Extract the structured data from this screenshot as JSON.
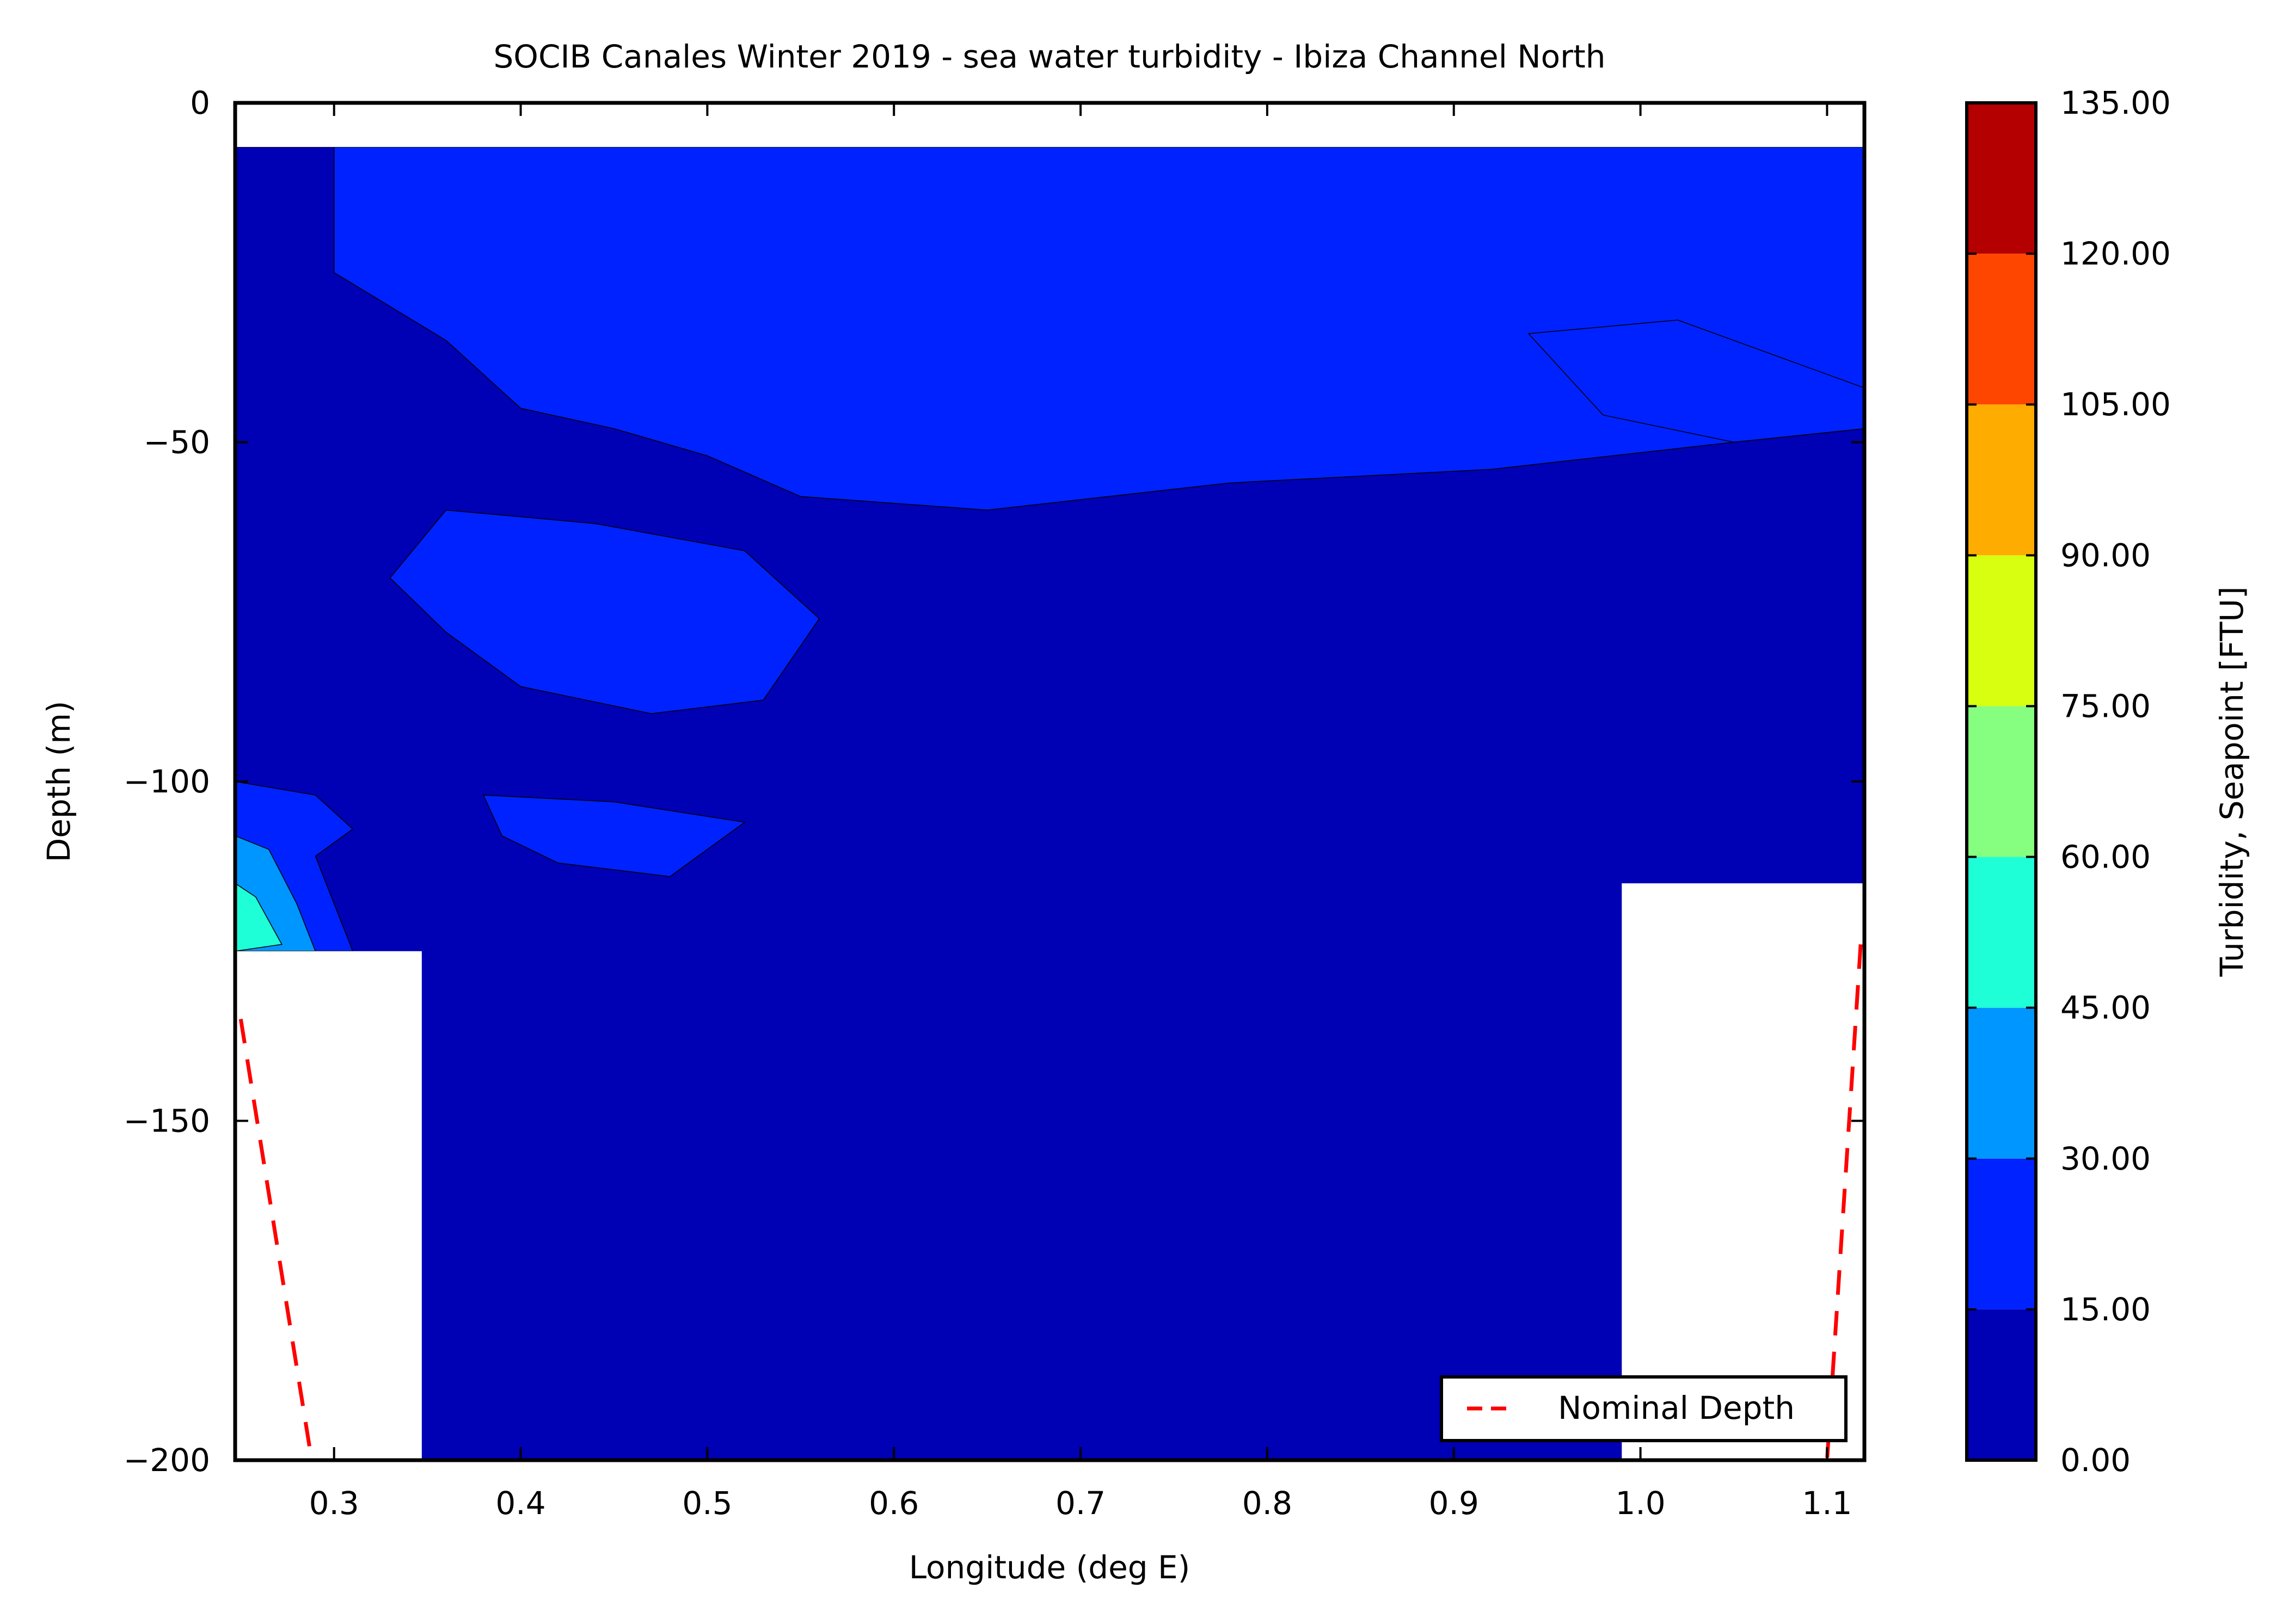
{
  "chart_data": {
    "type": "heatmap",
    "title": "SOCIB Canales Winter 2019 - sea water turbidity  -  Ibiza Channel North",
    "xlabel": "Longitude (deg E)",
    "ylabel": "Depth (m)",
    "xlim": [
      0.247,
      1.12
    ],
    "ylim": [
      -200,
      0
    ],
    "xticks": [
      0.3,
      0.4,
      0.5,
      0.6,
      0.7,
      0.8,
      0.9,
      1.0,
      1.1
    ],
    "xtick_labels": [
      "0.3",
      "0.4",
      "0.5",
      "0.6",
      "0.7",
      "0.8",
      "0.9",
      "1.0",
      "1.1"
    ],
    "yticks": [
      0,
      -50,
      -100,
      -150,
      -200
    ],
    "ytick_labels": [
      "0",
      "−50",
      "−100",
      "−150",
      "−200"
    ],
    "grid": false,
    "data_top_depth": -6.5,
    "colorbar": {
      "label": "Turbidity, Seapoint [FTU]",
      "levels": [
        0,
        15,
        30,
        45,
        60,
        75,
        90,
        105,
        120,
        135
      ],
      "level_labels": [
        "0.00",
        "15.00",
        "30.00",
        "45.00",
        "60.00",
        "75.00",
        "90.00",
        "105.00",
        "120.00",
        "135.00"
      ],
      "colors": [
        "#0000b4",
        "#0022ff",
        "#0096ff",
        "#1effd7",
        "#86ff80",
        "#d8ff10",
        "#ffac00",
        "#ff4600",
        "#b40000"
      ]
    },
    "contour_regions": [
      {
        "level": "0-15",
        "color": "#0000b4",
        "description_bounds": {
          "x": [
            0.247,
            1.12
          ],
          "y": [
            -200,
            -6.5
          ]
        }
      },
      {
        "level": "15-30",
        "color": "#0022ff",
        "polygon": [
          [
            0.247,
            -6.5
          ],
          [
            0.3,
            -6.5
          ],
          [
            0.3,
            -25
          ],
          [
            0.36,
            -35
          ],
          [
            0.4,
            -45
          ],
          [
            0.45,
            -48
          ],
          [
            0.5,
            -52
          ],
          [
            0.55,
            -58
          ],
          [
            0.65,
            -60
          ],
          [
            0.78,
            -56
          ],
          [
            0.92,
            -54
          ],
          [
            1.05,
            -50
          ],
          [
            1.12,
            -48
          ],
          [
            1.12,
            -6.5
          ]
        ]
      },
      {
        "level": "15-30",
        "color": "#0022ff",
        "polygon": [
          [
            0.36,
            -60
          ],
          [
            0.44,
            -62
          ],
          [
            0.52,
            -66
          ],
          [
            0.56,
            -76
          ],
          [
            0.53,
            -88
          ],
          [
            0.47,
            -90
          ],
          [
            0.4,
            -86
          ],
          [
            0.36,
            -78
          ],
          [
            0.33,
            -70
          ]
        ]
      },
      {
        "level": "15-30",
        "color": "#0022ff",
        "polygon": [
          [
            0.38,
            -102
          ],
          [
            0.45,
            -103
          ],
          [
            0.52,
            -106
          ],
          [
            0.48,
            -114
          ],
          [
            0.42,
            -112
          ],
          [
            0.39,
            -108
          ]
        ]
      },
      {
        "level": "15-30",
        "color": "#0022ff",
        "polygon": [
          [
            0.247,
            -100
          ],
          [
            0.29,
            -102
          ],
          [
            0.31,
            -107
          ],
          [
            0.29,
            -111
          ],
          [
            0.3,
            -118
          ],
          [
            0.31,
            -125
          ],
          [
            0.247,
            -125
          ]
        ]
      },
      {
        "level": "15-30",
        "color": "#0022ff",
        "polygon": [
          [
            0.94,
            -34
          ],
          [
            1.02,
            -32
          ],
          [
            1.08,
            -38
          ],
          [
            1.12,
            -42
          ],
          [
            1.12,
            -48
          ],
          [
            1.05,
            -50
          ],
          [
            0.98,
            -46
          ]
        ]
      },
      {
        "level": "30-45",
        "color": "#0096ff",
        "polygon": [
          [
            0.247,
            -108
          ],
          [
            0.265,
            -110
          ],
          [
            0.28,
            -118
          ],
          [
            0.29,
            -125
          ],
          [
            0.247,
            -125
          ]
        ]
      },
      {
        "level": "45-60",
        "color": "#1effd7",
        "polygon": [
          [
            0.247,
            -115
          ],
          [
            0.258,
            -117
          ],
          [
            0.272,
            -124
          ],
          [
            0.247,
            -125
          ]
        ]
      }
    ],
    "no_data_masks": [
      {
        "x": [
          0.247,
          0.347
        ],
        "y": [
          -200,
          -125
        ]
      },
      {
        "x": [
          0.99,
          1.12
        ],
        "y": [
          -200,
          -115
        ]
      }
    ],
    "series": [
      {
        "name": "Nominal Depth",
        "color": "#ff0000",
        "style": "dashed",
        "segments": [
          [
            [
              0.25,
              -135
            ],
            [
              0.288,
              -200
            ]
          ],
          [
            [
              1.118,
              -124
            ],
            [
              1.1,
              -200
            ]
          ]
        ]
      }
    ],
    "legend": {
      "placement": "lower right",
      "entries": [
        "Nominal Depth"
      ]
    }
  }
}
